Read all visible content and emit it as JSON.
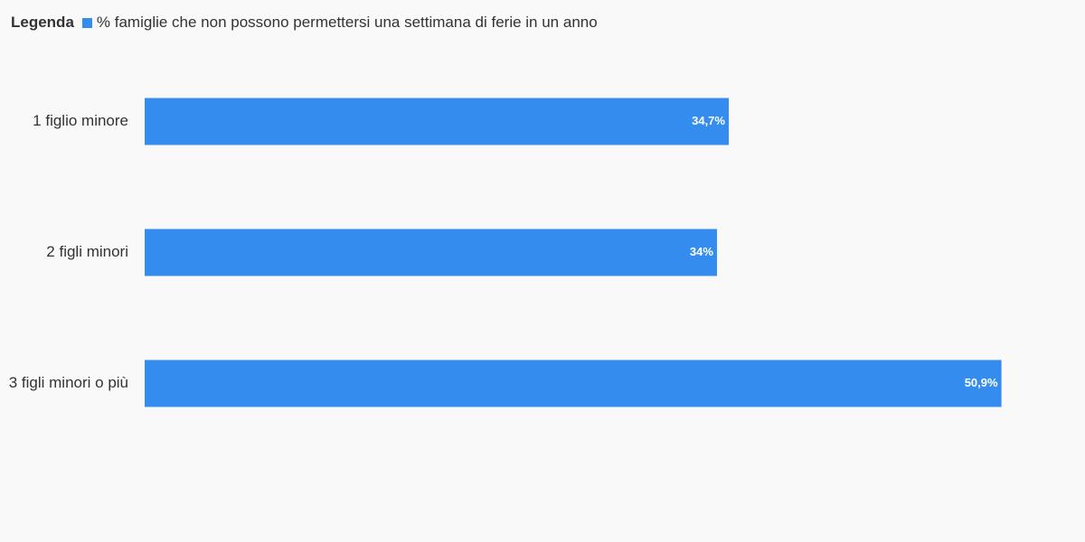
{
  "legend": {
    "title": "Legenda",
    "series_label": "% famiglie che non possono permettersi una settimana di ferie in un anno"
  },
  "colors": {
    "bar": "#338cee",
    "background": "#f9f9f9",
    "text": "#333333",
    "value_label": "#ffffff"
  },
  "chart_data": {
    "type": "bar",
    "orientation": "horizontal",
    "categories": [
      "1 figlio minore",
      "2 figli minori",
      "3 figli minori o più"
    ],
    "series": [
      {
        "name": "% famiglie che non possono permettersi una settimana di ferie in un anno",
        "values": [
          34.7,
          34,
          50.9
        ],
        "labels": [
          "34,7%",
          "34%",
          "50,9%"
        ]
      }
    ],
    "xlim": [
      0,
      60
    ],
    "grid": false,
    "legend_position": "top-left"
  }
}
